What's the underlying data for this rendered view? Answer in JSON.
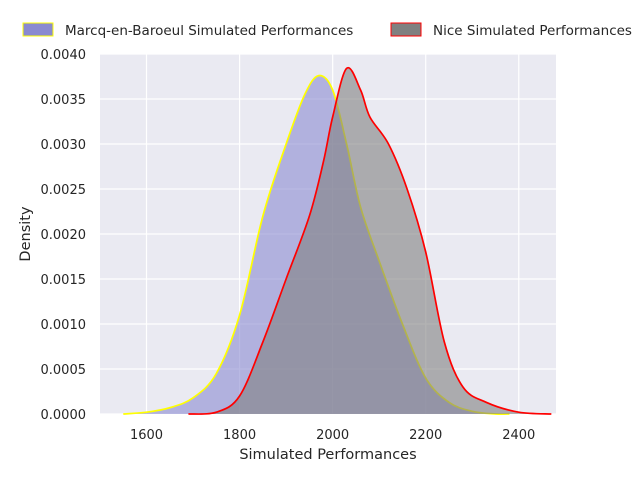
{
  "chart_data": {
    "type": "area",
    "xlabel": "Simulated Performances",
    "ylabel": "Density",
    "xlim": [
      1500,
      2480
    ],
    "ylim": [
      0,
      0.004
    ],
    "xticks": [
      1600,
      1800,
      2000,
      2200,
      2400
    ],
    "yticks": [
      "0.0000",
      "0.0005",
      "0.0010",
      "0.0015",
      "0.0020",
      "0.0025",
      "0.0030",
      "0.0035",
      "0.0040"
    ],
    "grid": true,
    "legend_position": "top",
    "series": [
      {
        "name": "Marcq-en-Baroeul Simulated Performances",
        "fill_color": "#8a8ad0",
        "line_color": "#ffff00",
        "points": [
          [
            1550,
            0
          ],
          [
            1600,
            2e-05
          ],
          [
            1650,
            7e-05
          ],
          [
            1700,
            0.00018
          ],
          [
            1750,
            0.00045
          ],
          [
            1800,
            0.0011
          ],
          [
            1850,
            0.0022
          ],
          [
            1900,
            0.003
          ],
          [
            1940,
            0.00355
          ],
          [
            1970,
            0.00376
          ],
          [
            2000,
            0.0036
          ],
          [
            2030,
            0.003
          ],
          [
            2060,
            0.0023
          ],
          [
            2100,
            0.0017
          ],
          [
            2150,
            0.001
          ],
          [
            2200,
            0.0004
          ],
          [
            2250,
            0.00013
          ],
          [
            2300,
            3e-05
          ],
          [
            2350,
            0.0
          ],
          [
            2380,
            0
          ]
        ]
      },
      {
        "name": "Nice Simulated Performances",
        "fill_color": "#808080",
        "line_color": "#ff0000",
        "points": [
          [
            1690,
            0
          ],
          [
            1750,
            2e-05
          ],
          [
            1800,
            0.0002
          ],
          [
            1850,
            0.0008
          ],
          [
            1900,
            0.0015
          ],
          [
            1950,
            0.0022
          ],
          [
            1980,
            0.0028
          ],
          [
            2000,
            0.0033
          ],
          [
            2030,
            0.00384
          ],
          [
            2060,
            0.0036
          ],
          [
            2080,
            0.0033
          ],
          [
            2120,
            0.003
          ],
          [
            2160,
            0.0025
          ],
          [
            2200,
            0.0018
          ],
          [
            2240,
            0.0008
          ],
          [
            2280,
            0.0003
          ],
          [
            2330,
            0.00013
          ],
          [
            2400,
            2e-05
          ],
          [
            2470,
            0
          ]
        ]
      }
    ]
  }
}
